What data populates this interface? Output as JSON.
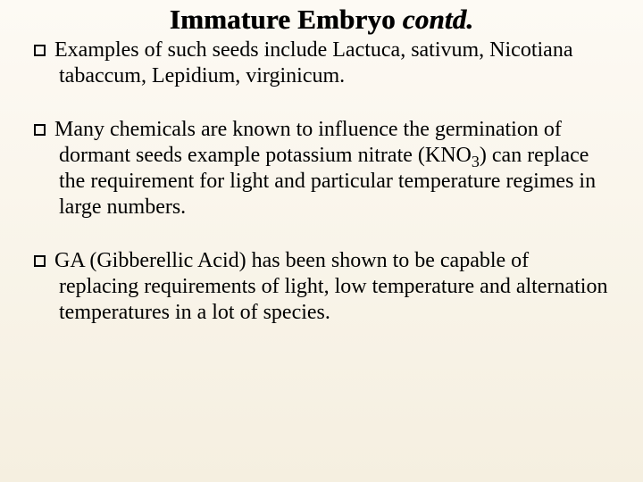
{
  "title_main": "Immature Embryo ",
  "title_contd": "contd.",
  "bullets": {
    "b1_lead": "Examples ",
    "b1_rest": "of such seeds include Lactuca, sativum, Nicotiana tabaccum, Lepidium, virginicum.",
    "b2_lead": "Many ",
    "b2_rest_a": "chemicals are known to influence the germination of dormant seeds example potassium nitrate (KNO",
    "b2_sub": "3",
    "b2_rest_b": ") can replace the requirement for light and particular temperature regimes in large numbers.",
    "b3_lead": "GA ",
    "b3_rest": "(Gibberellic Acid) has been shown to be capable of replacing requirements of light, low temperature and alternation temperatures in a lot of species."
  },
  "colors": {
    "bg_top": "#fdfaf4",
    "bg_bottom": "#f5efe0",
    "text": "#000000",
    "marker_border": "#000000"
  },
  "typography": {
    "title_fontsize": 31,
    "body_fontsize": 24,
    "font_family": "Times New Roman"
  }
}
